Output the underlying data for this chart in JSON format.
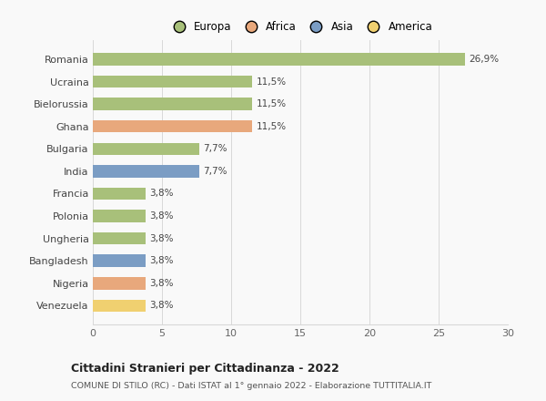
{
  "categories": [
    "Romania",
    "Ucraina",
    "Bielorussia",
    "Ghana",
    "Bulgaria",
    "India",
    "Francia",
    "Polonia",
    "Ungheria",
    "Bangladesh",
    "Nigeria",
    "Venezuela"
  ],
  "values": [
    26.9,
    11.5,
    11.5,
    11.5,
    7.7,
    7.7,
    3.8,
    3.8,
    3.8,
    3.8,
    3.8,
    3.8
  ],
  "labels": [
    "26,9%",
    "11,5%",
    "11,5%",
    "11,5%",
    "7,7%",
    "7,7%",
    "3,8%",
    "3,8%",
    "3,8%",
    "3,8%",
    "3,8%",
    "3,8%"
  ],
  "colors": [
    "#a8c07a",
    "#a8c07a",
    "#a8c07a",
    "#e8a87c",
    "#a8c07a",
    "#7b9dc4",
    "#a8c07a",
    "#a8c07a",
    "#a8c07a",
    "#7b9dc4",
    "#e8a87c",
    "#f0d070"
  ],
  "legend": [
    {
      "label": "Europa",
      "color": "#a8c07a"
    },
    {
      "label": "Africa",
      "color": "#e8a87c"
    },
    {
      "label": "Asia",
      "color": "#7b9dc4"
    },
    {
      "label": "America",
      "color": "#f0d070"
    }
  ],
  "xlim": [
    0,
    30
  ],
  "xticks": [
    0,
    5,
    10,
    15,
    20,
    25,
    30
  ],
  "title": "Cittadini Stranieri per Cittadinanza - 2022",
  "subtitle": "COMUNE DI STILO (RC) - Dati ISTAT al 1° gennaio 2022 - Elaborazione TUTTITALIA.IT",
  "background_color": "#f9f9f9",
  "grid_color": "#d8d8d8"
}
